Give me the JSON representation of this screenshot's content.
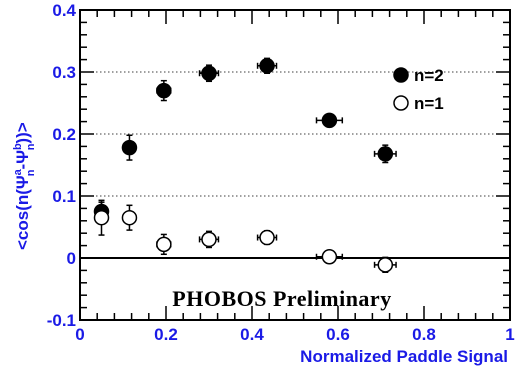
{
  "chart_data": {
    "type": "scatter",
    "xlabel": "Normalized Paddle Signal",
    "ylabel": "<cos(n(Ψⁿₙ-Ψᵇₙ))>",
    "ylabel_parts": {
      "prefix": "<cos(n(Ψ",
      "sup_a": "a",
      "sub_n1": "n",
      "mid": "-Ψ",
      "sup_b": "b",
      "sub_n2": "n",
      "suffix": "))>"
    },
    "xlim": [
      0,
      1.0
    ],
    "ylim": [
      -0.1,
      0.4
    ],
    "xticks": [
      {
        "value": 0,
        "label": "0"
      },
      {
        "value": 0.2,
        "label": "0.2"
      },
      {
        "value": 0.4,
        "label": "0.4"
      },
      {
        "value": 0.6,
        "label": "0.6"
      },
      {
        "value": 0.8,
        "label": "0.8"
      },
      {
        "value": 1.0,
        "label": "1"
      }
    ],
    "yticks": [
      {
        "value": -0.1,
        "label": "-0.1"
      },
      {
        "value": 0,
        "label": "0"
      },
      {
        "value": 0.1,
        "label": "0.1"
      },
      {
        "value": 0.2,
        "label": "0.2"
      },
      {
        "value": 0.3,
        "label": "0.3"
      },
      {
        "value": 0.4,
        "label": "0.4"
      }
    ],
    "dotted_gridlines_y": [
      0.1,
      0.2,
      0.3
    ],
    "zero_line": true,
    "series": [
      {
        "name": "n=2",
        "marker": "filled-circle",
        "color": "#000000",
        "points": [
          {
            "x": 0.05,
            "y": 0.075,
            "xerr": 0.01,
            "yerr": 0.015
          },
          {
            "x": 0.115,
            "y": 0.178,
            "xerr": 0.013,
            "yerr": 0.02
          },
          {
            "x": 0.195,
            "y": 0.27,
            "xerr": 0.016,
            "yerr": 0.016
          },
          {
            "x": 0.3,
            "y": 0.298,
            "xerr": 0.022,
            "yerr": 0.013
          },
          {
            "x": 0.435,
            "y": 0.31,
            "xerr": 0.022,
            "yerr": 0.012
          },
          {
            "x": 0.58,
            "y": 0.222,
            "xerr": 0.03,
            "yerr": 0.01
          },
          {
            "x": 0.71,
            "y": 0.168,
            "xerr": 0.025,
            "yerr": 0.014
          }
        ]
      },
      {
        "name": "n=1",
        "marker": "open-circle",
        "color": "#000000",
        "points": [
          {
            "x": 0.05,
            "y": 0.065,
            "xerr": 0.01,
            "yerr": 0.028
          },
          {
            "x": 0.115,
            "y": 0.065,
            "xerr": 0.013,
            "yerr": 0.02
          },
          {
            "x": 0.195,
            "y": 0.022,
            "xerr": 0.016,
            "yerr": 0.016
          },
          {
            "x": 0.3,
            "y": 0.03,
            "xerr": 0.022,
            "yerr": 0.013
          },
          {
            "x": 0.435,
            "y": 0.033,
            "xerr": 0.022,
            "yerr": 0.011
          },
          {
            "x": 0.58,
            "y": 0.002,
            "xerr": 0.03,
            "yerr": 0.01
          },
          {
            "x": 0.71,
            "y": -0.011,
            "xerr": 0.025,
            "yerr": 0.012
          }
        ]
      }
    ],
    "annotation": "PHOBOS Preliminary",
    "legend_placement": "top-right",
    "axis_label_color": "#1a1ae6"
  }
}
